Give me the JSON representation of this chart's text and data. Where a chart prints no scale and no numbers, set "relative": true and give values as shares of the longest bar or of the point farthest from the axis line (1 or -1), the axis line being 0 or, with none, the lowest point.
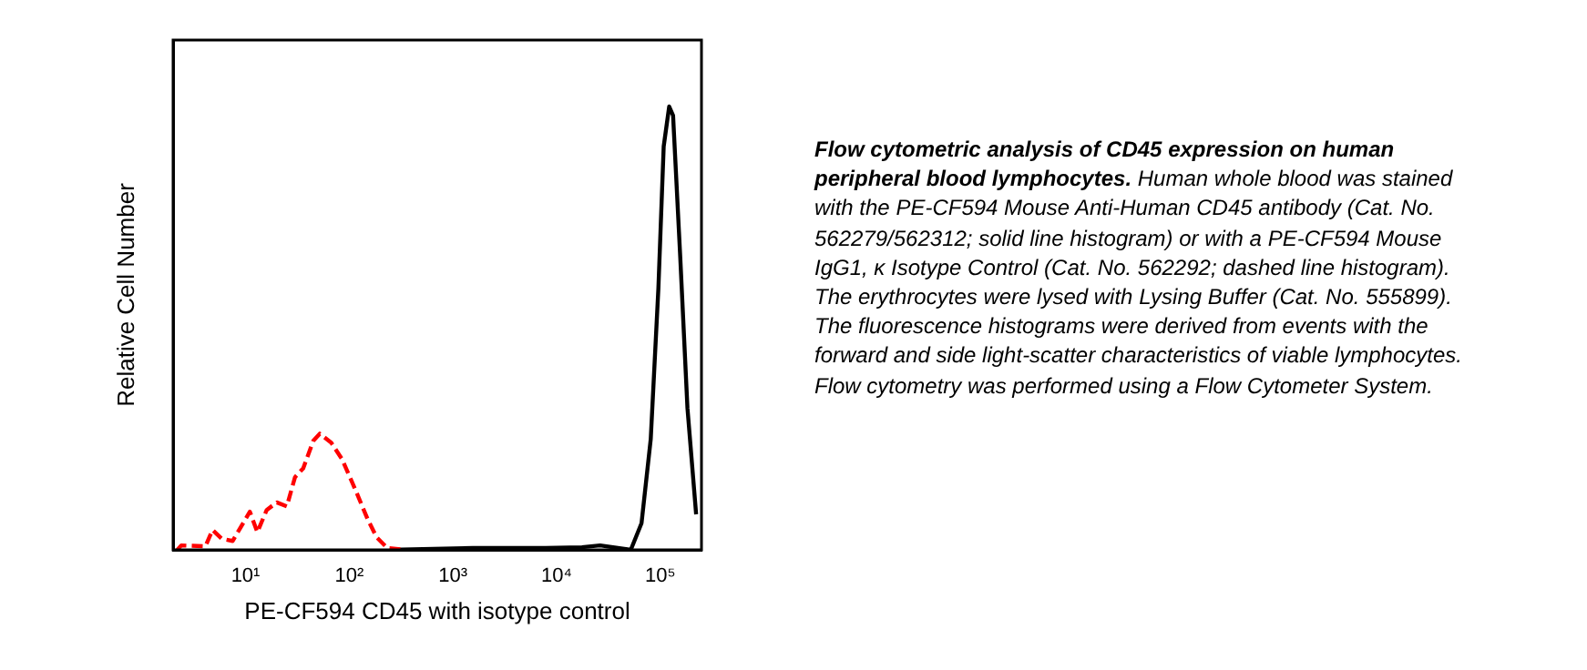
{
  "chart_data": {
    "type": "line",
    "xlabel": "PE-CF594 CD45 with isotype control",
    "ylabel": "Relative Cell Number",
    "log": "x",
    "relative": true,
    "grid": false,
    "legend": false,
    "marker": "none",
    "xlim": [
      2,
      250000
    ],
    "xticks": [
      {
        "value": 10,
        "label": "10¹"
      },
      {
        "value": 100,
        "label": "10²"
      },
      {
        "value": 1000,
        "label": "10³"
      },
      {
        "value": 10000,
        "label": "10⁴"
      },
      {
        "value": 100000,
        "label": "10⁵"
      }
    ],
    "series": [
      {
        "color": "#ff0000",
        "line_style": "dashed",
        "x": [
          2.2,
          2.4,
          4.1,
          4.8,
          5.9,
          7.5,
          11,
          13,
          16,
          20,
          25,
          30,
          36,
          45,
          52,
          67,
          85,
          113,
          150,
          183,
          233,
          350
        ],
        "values": [
          0,
          0.01,
          0.008,
          0.045,
          0.025,
          0.02,
          0.086,
          0.04,
          0.09,
          0.107,
          0.098,
          0.164,
          0.184,
          0.246,
          0.262,
          0.242,
          0.205,
          0.139,
          0.07,
          0.029,
          0.004,
          0
        ]
      },
      {
        "color": "#000000",
        "line_style": "solid",
        "x": [
          254,
          1560,
          7850,
          17600,
          26300,
          52000,
          66000,
          81000,
          96000,
          108000,
          122000,
          133000,
          156000,
          183000,
          222000
        ],
        "values": [
          0,
          0.004,
          0.004,
          0.006,
          0.01,
          0,
          0.06,
          0.25,
          0.59,
          0.91,
          1,
          0.98,
          0.66,
          0.32,
          0.08
        ]
      }
    ],
    "annotations": [
      "Flow cytometric analysis of CD45 expression on human peripheral blood lymphocytes.",
      "Human whole blood was stained with the PE-CF594 Mouse Anti-Human CD45 antibody (Cat. No. 562279/562312; solid line histogram) or with a PE-CF594 Mouse IgG1, κ Isotype Control (Cat. No. 562292; dashed line histogram). The erythrocytes were lysed with Lysing Buffer (Cat. No. 555899). The fluorescence histograms were derived from events with the forward and side light-scatter characteristics of viable lymphocytes. Flow cytometry was performed using a Flow Cytometer System."
    ]
  }
}
